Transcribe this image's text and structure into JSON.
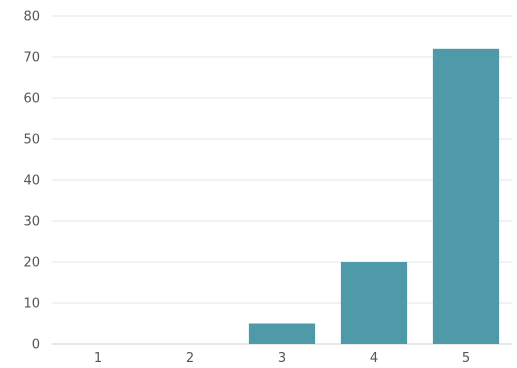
{
  "chart_data": {
    "type": "bar",
    "categories": [
      "1",
      "2",
      "3",
      "4",
      "5"
    ],
    "values": [
      0,
      0,
      5,
      20,
      72
    ],
    "title": "",
    "xlabel": "",
    "ylabel": "",
    "ylim": [
      0,
      80
    ],
    "yticks": [
      "0",
      "10",
      "20",
      "30",
      "40",
      "50",
      "60",
      "70",
      "80"
    ],
    "grid": true,
    "legend": "none",
    "bar_color": "#4e9aa8"
  }
}
